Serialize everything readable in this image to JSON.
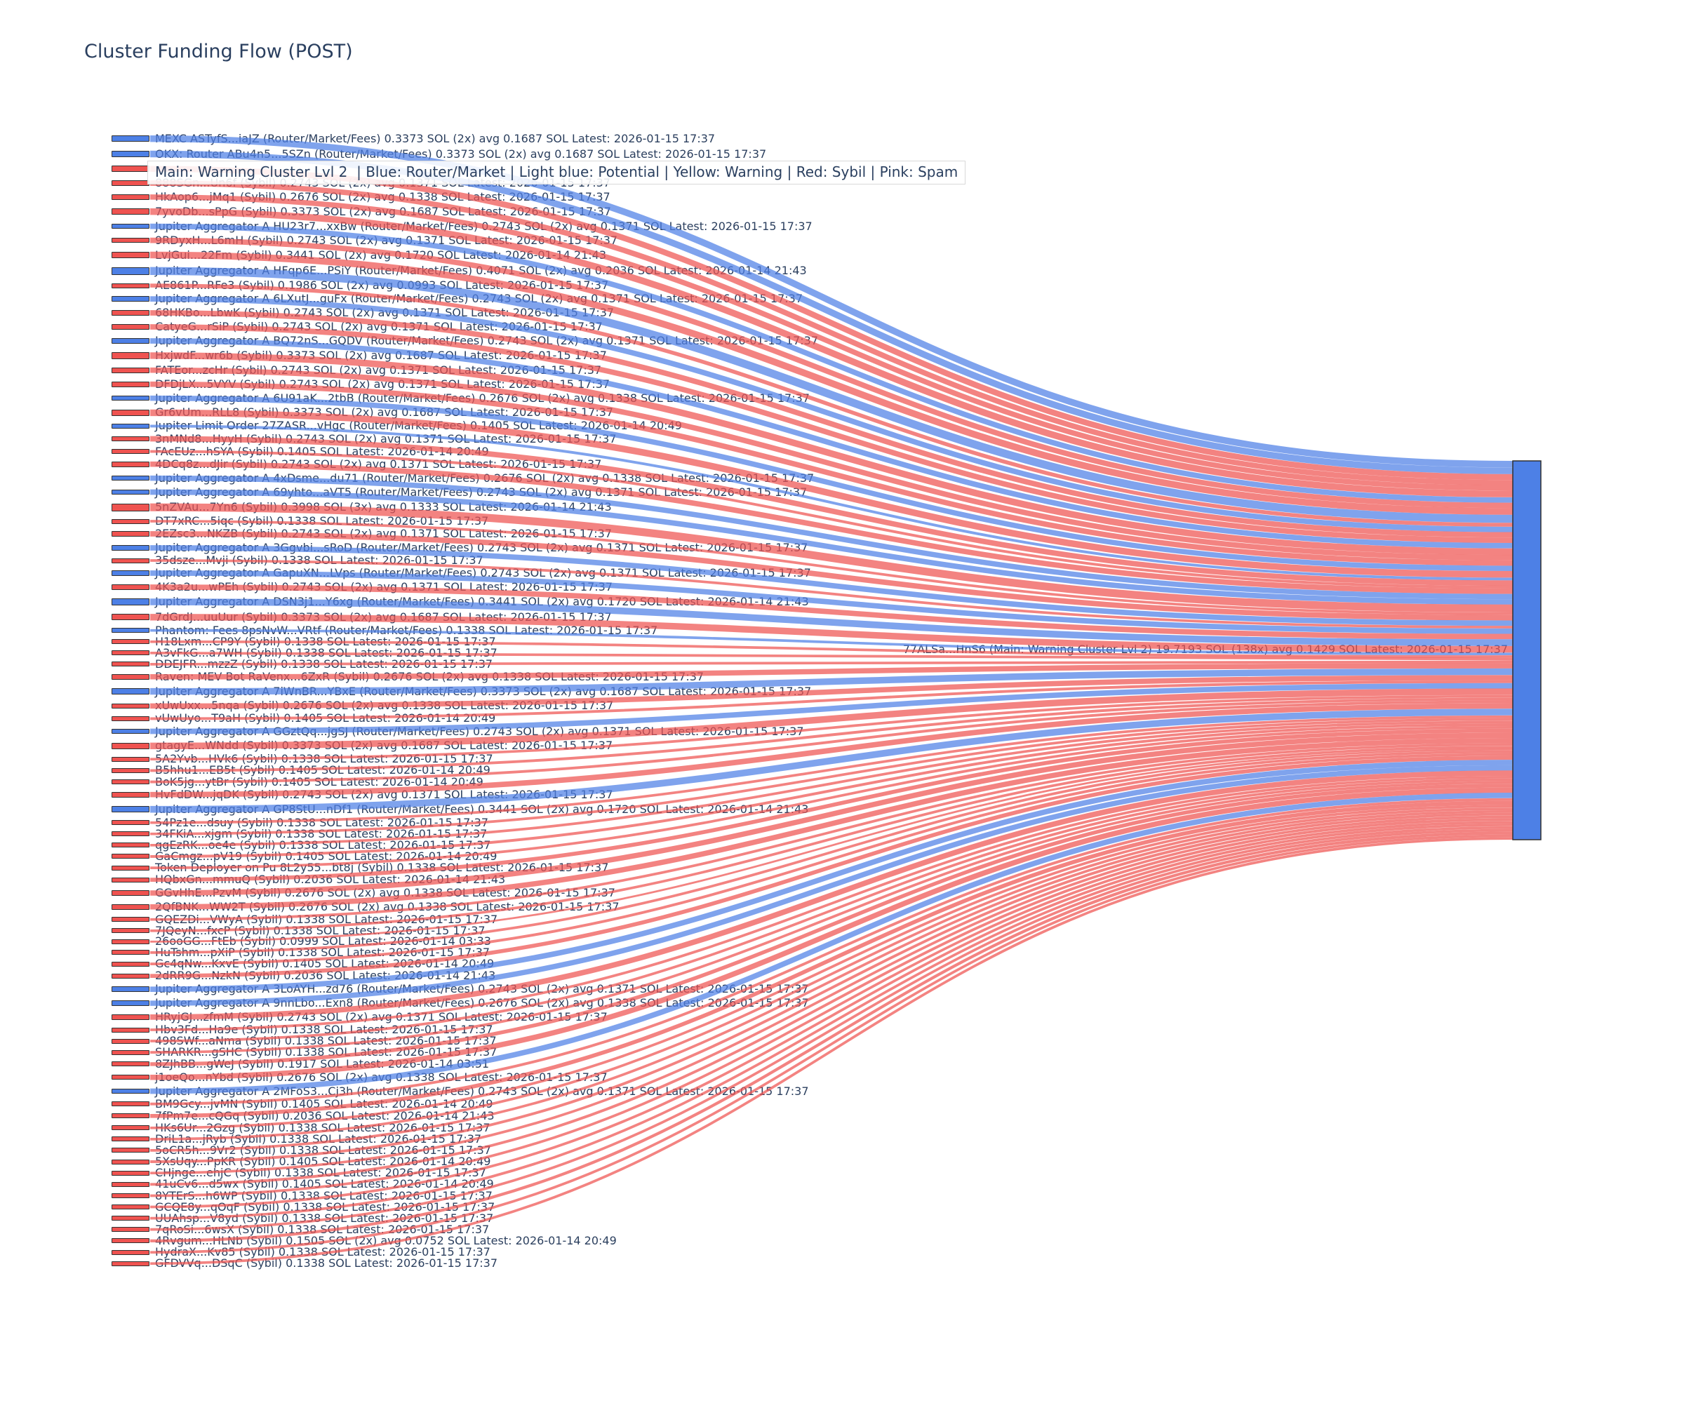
{
  "title": "Cluster Funding Flow (POST)",
  "legend": {
    "text": "Main: Warning Cluster Lvl 2  | Blue: Router/Market | Light blue: Potential | Yellow: Warning | Red: Sybil | Pink: Spam"
  },
  "colors": {
    "router": "#4d80e6",
    "sybil": "#ef5350",
    "target": "#4d80e6",
    "link_router": "rgba(77,128,230,0.72)",
    "link_sybil": "rgba(239,83,80,0.72)",
    "text": "#2b3f5e"
  },
  "chart_data": {
    "type": "sankey",
    "title": "Cluster Funding Flow (POST)",
    "target": {
      "label": "77ALSa...HnS6 (Main: Warning Cluster Lvl 2) 19.7193 SOL (138x) avg 0.1429 SOL Latest: 2026-01-15 17:37",
      "total_sol": 19.7193,
      "tx_count": "138x",
      "avg_sol": 0.1429,
      "latest": "2026-01-15 17:37"
    },
    "sources": [
      {
        "label": "MEXC ASTyfS...iaJZ (Router/Market/Fees) 0.3373 SOL (2x) avg 0.1687 SOL Latest: 2026-01-15 17:37",
        "type": "router",
        "value_sol": 0.3373
      },
      {
        "label": "OKX: Router ABu4n5...5SZn (Router/Market/Fees) 0.3373 SOL (2x) avg 0.1687 SOL Latest: 2026-01-15 17:37",
        "type": "router",
        "value_sol": 0.3373
      },
      {
        "label": "",
        "type": "sybil",
        "value_sol": null,
        "hidden_behind_legend": true
      },
      {
        "label": "888SGn...Un6f (Sybil) 0.2743 SOL (2x) avg 0.1371 SOL Latest: 2026-01-15 17:37",
        "type": "sybil",
        "value_sol": 0.2743
      },
      {
        "label": "HkAop6...jMq1 (Sybil) 0.2676 SOL (2x) avg 0.1338 SOL Latest: 2026-01-15 17:37",
        "type": "sybil",
        "value_sol": 0.2676
      },
      {
        "label": "7yvoDb...sPpG (Sybil) 0.3373 SOL (2x) avg 0.1687 SOL Latest: 2026-01-15 17:37",
        "type": "sybil",
        "value_sol": 0.3373
      },
      {
        "label": "Jupiter Aggregator A HU23r7...xxBw (Router/Market/Fees) 0.2743 SOL (2x) avg 0.1371 SOL Latest: 2026-01-15 17:37",
        "type": "router",
        "value_sol": 0.2743
      },
      {
        "label": "9RDyxH...L6mH (Sybil) 0.2743 SOL (2x) avg 0.1371 SOL Latest: 2026-01-15 17:37",
        "type": "sybil",
        "value_sol": 0.2743
      },
      {
        "label": "LvjGui...22Fm (Sybil) 0.3441 SOL (2x) avg 0.1720 SOL Latest: 2026-01-14 21:43",
        "type": "sybil",
        "value_sol": 0.3441
      },
      {
        "label": "Jupiter Aggregator A HFqp6E...PSiY (Router/Market/Fees) 0.4071 SOL (2x) avg 0.2036 SOL Latest: 2026-01-14 21:43",
        "type": "router",
        "value_sol": 0.4071
      },
      {
        "label": "AE861P...RFe3 (Sybil) 0.1986 SOL (2x) avg 0.0993 SOL Latest: 2026-01-15 17:37",
        "type": "sybil",
        "value_sol": 0.1986
      },
      {
        "label": "Jupiter Aggregator A 6LXutJ...guFx (Router/Market/Fees) 0.2743 SOL (2x) avg 0.1371 SOL Latest: 2026-01-15 17:37",
        "type": "router",
        "value_sol": 0.2743
      },
      {
        "label": "68HKBo...LbwK (Sybil) 0.2743 SOL (2x) avg 0.1371 SOL Latest: 2026-01-15 17:37",
        "type": "sybil",
        "value_sol": 0.2743
      },
      {
        "label": "CatyeG...rSiP (Sybil) 0.2743 SOL (2x) avg 0.1371 SOL Latest: 2026-01-15 17:37",
        "type": "sybil",
        "value_sol": 0.2743
      },
      {
        "label": "Jupiter Aggregator A BQ72nS...GQDV (Router/Market/Fees) 0.2743 SOL (2x) avg 0.1371 SOL Latest: 2026-01-15 17:37",
        "type": "router",
        "value_sol": 0.2743
      },
      {
        "label": "HxjwdF...wr6b (Sybil) 0.3373 SOL (2x) avg 0.1687 SOL Latest: 2026-01-15 17:37",
        "type": "sybil",
        "value_sol": 0.3373
      },
      {
        "label": "FATEor...zcHr (Sybil) 0.2743 SOL (2x) avg 0.1371 SOL Latest: 2026-01-15 17:37",
        "type": "sybil",
        "value_sol": 0.2743
      },
      {
        "label": "DFDjLX...5VYV (Sybil) 0.2743 SOL (2x) avg 0.1371 SOL Latest: 2026-01-15 17:37",
        "type": "sybil",
        "value_sol": 0.2743
      },
      {
        "label": "Jupiter Aggregator A 6U91aK...2tbB (Router/Market/Fees) 0.2676 SOL (2x) avg 0.1338 SOL Latest: 2026-01-15 17:37",
        "type": "router",
        "value_sol": 0.2676
      },
      {
        "label": "Gr6vUm...RLL8 (Sybil) 0.3373 SOL (2x) avg 0.1687 SOL Latest: 2026-01-15 17:37",
        "type": "sybil",
        "value_sol": 0.3373
      },
      {
        "label": "Jupiter Limit Order 27ZASR...vHgc (Router/Market/Fees) 0.1405 SOL Latest: 2026-01-14 20:49",
        "type": "router",
        "value_sol": 0.1405
      },
      {
        "label": "3nMNd8...HyyH (Sybil) 0.2743 SOL (2x) avg 0.1371 SOL Latest: 2026-01-15 17:37",
        "type": "sybil",
        "value_sol": 0.2743
      },
      {
        "label": "FAcEUz...hSYA (Sybil) 0.1405 SOL Latest: 2026-01-14 20:49",
        "type": "sybil",
        "value_sol": 0.1405
      },
      {
        "label": "4DCq8z...dJir (Sybil) 0.2743 SOL (2x) avg 0.1371 SOL Latest: 2026-01-15 17:37",
        "type": "sybil",
        "value_sol": 0.2743
      },
      {
        "label": "Jupiter Aggregator A 4xDsme...du71 (Router/Market/Fees) 0.2676 SOL (2x) avg 0.1338 SOL Latest: 2026-01-15 17:37",
        "type": "router",
        "value_sol": 0.2676
      },
      {
        "label": "Jupiter Aggregator A 69yhto...aVT5 (Router/Market/Fees) 0.2743 SOL (2x) avg 0.1371 SOL Latest: 2026-01-15 17:37",
        "type": "router",
        "value_sol": 0.2743
      },
      {
        "label": "5nZVAu...7Yn6 (Sybil) 0.3998 SOL (3x) avg 0.1333 SOL Latest: 2026-01-14 21:43",
        "type": "sybil",
        "value_sol": 0.3998
      },
      {
        "label": "DT7xRC...5iqc (Sybil) 0.1338 SOL Latest: 2026-01-15 17:37",
        "type": "sybil",
        "value_sol": 0.1338
      },
      {
        "label": "2EZsc3...NKZB (Sybil) 0.2743 SOL (2x) avg 0.1371 SOL Latest: 2026-01-15 17:37",
        "type": "sybil",
        "value_sol": 0.2743
      },
      {
        "label": "Jupiter Aggregator A 3Ggvbi...sRoD (Router/Market/Fees) 0.2743 SOL (2x) avg 0.1371 SOL Latest: 2026-01-15 17:37",
        "type": "router",
        "value_sol": 0.2743
      },
      {
        "label": "35dsze...Mvji (Sybil) 0.1338 SOL Latest: 2026-01-15 17:37",
        "type": "sybil",
        "value_sol": 0.1338
      },
      {
        "label": "Jupiter Aggregator A GapuXN...LVps (Router/Market/Fees) 0.2743 SOL (2x) avg 0.1371 SOL Latest: 2026-01-15 17:37",
        "type": "router",
        "value_sol": 0.2743
      },
      {
        "label": "4K3a2u...wPEh (Sybil) 0.2743 SOL (2x) avg 0.1371 SOL Latest: 2026-01-15 17:37",
        "type": "sybil",
        "value_sol": 0.2743
      },
      {
        "label": "Jupiter Aggregator A DSN3j1...Y6xg (Router/Market/Fees) 0.3441 SOL (2x) avg 0.1720 SOL Latest: 2026-01-14 21:43",
        "type": "router",
        "value_sol": 0.3441
      },
      {
        "label": "7dGrdJ...uuUur (Sybil) 0.3373 SOL (2x) avg 0.1687 SOL Latest: 2026-01-15 17:37",
        "type": "sybil",
        "value_sol": 0.3373
      },
      {
        "label": "Phantom: Fees 8psNvW...VRtf (Router/Market/Fees) 0.1338 SOL Latest: 2026-01-15 17:37",
        "type": "router",
        "value_sol": 0.1338
      },
      {
        "label": "H18Lxm...CP9Y (Sybil) 0.1338 SOL Latest: 2026-01-15 17:37",
        "type": "sybil",
        "value_sol": 0.1338
      },
      {
        "label": "A3vFkG...a7WH (Sybil) 0.1338 SOL Latest: 2026-01-15 17:37",
        "type": "sybil",
        "value_sol": 0.1338
      },
      {
        "label": "DDEJFR...mzzZ (Sybil) 0.1338 SOL Latest: 2026-01-15 17:37",
        "type": "sybil",
        "value_sol": 0.1338
      },
      {
        "label": "Raven: MEV Bot RaVenx...6ZxR (Sybil) 0.2676 SOL (2x) avg 0.1338 SOL Latest: 2026-01-15 17:37",
        "type": "sybil",
        "value_sol": 0.2676
      },
      {
        "label": "Jupiter Aggregator A 7iWnBR...YBxE (Router/Market/Fees) 0.3373 SOL (2x) avg 0.1687 SOL Latest: 2026-01-15 17:37",
        "type": "router",
        "value_sol": 0.3373
      },
      {
        "label": "xUwUxx...5nqa (Sybil) 0.2676 SOL (2x) avg 0.1338 SOL Latest: 2026-01-15 17:37",
        "type": "sybil",
        "value_sol": 0.2676
      },
      {
        "label": "vUwUyo...T9aH (Sybil) 0.1405 SOL Latest: 2026-01-14 20:49",
        "type": "sybil",
        "value_sol": 0.1405
      },
      {
        "label": "Jupiter Aggregator A GGztQq...jgSJ (Router/Market/Fees) 0.2743 SOL (2x) avg 0.1371 SOL Latest: 2026-01-15 17:37",
        "type": "router",
        "value_sol": 0.2743
      },
      {
        "label": "gtagyE...WNdd (Sybil) 0.3373 SOL (2x) avg 0.1687 SOL Latest: 2026-01-15 17:37",
        "type": "sybil",
        "value_sol": 0.3373
      },
      {
        "label": "5A2Yvb...HVk6 (Sybil) 0.1338 SOL Latest: 2026-01-15 17:37",
        "type": "sybil",
        "value_sol": 0.1338
      },
      {
        "label": "B5hhu1...EB5t (Sybil) 0.1405 SOL Latest: 2026-01-14 20:49",
        "type": "sybil",
        "value_sol": 0.1405
      },
      {
        "label": "BoK5jg...ytBr (Sybil) 0.1405 SOL Latest: 2026-01-14 20:49",
        "type": "sybil",
        "value_sol": 0.1405
      },
      {
        "label": "HvFdDW...jqDK (Sybil) 0.2743 SOL (2x) avg 0.1371 SOL Latest: 2026-01-15 17:37",
        "type": "sybil",
        "value_sol": 0.2743
      },
      {
        "label": "Jupiter Aggregator A GP8StU...nDf1 (Router/Market/Fees) 0.3441 SOL (2x) avg 0.1720 SOL Latest: 2026-01-14 21:43",
        "type": "router",
        "value_sol": 0.3441
      },
      {
        "label": "54Pz1e...dsuy (Sybil) 0.1338 SOL Latest: 2026-01-15 17:37",
        "type": "sybil",
        "value_sol": 0.1338
      },
      {
        "label": "34FKiA...xjgm (Sybil) 0.1338 SOL Latest: 2026-01-15 17:37",
        "type": "sybil",
        "value_sol": 0.1338
      },
      {
        "label": "qgEzRK...oe4e (Sybil) 0.1338 SOL Latest: 2026-01-15 17:37",
        "type": "sybil",
        "value_sol": 0.1338
      },
      {
        "label": "GaCmgz...pV19 (Sybil) 0.1405 SOL Latest: 2026-01-14 20:49",
        "type": "sybil",
        "value_sol": 0.1405
      },
      {
        "label": "Token Deployer on Pu 8L2y55...bt8j (Sybil) 0.1338 SOL Latest: 2026-01-15 17:37",
        "type": "sybil",
        "value_sol": 0.1338
      },
      {
        "label": "HQbxGn...mmuQ (Sybil) 0.2036 SOL Latest: 2026-01-14 21:43",
        "type": "sybil",
        "value_sol": 0.2036
      },
      {
        "label": "GGvHhE...PzvM (Sybil) 0.2676 SOL (2x) avg 0.1338 SOL Latest: 2026-01-15 17:37",
        "type": "sybil",
        "value_sol": 0.2676
      },
      {
        "label": "2QfBNK...WW2T (Sybil) 0.2676 SOL (2x) avg 0.1338 SOL Latest: 2026-01-15 17:37",
        "type": "sybil",
        "value_sol": 0.2676
      },
      {
        "label": "GQEZDi...VWyA (Sybil) 0.1338 SOL Latest: 2026-01-15 17:37",
        "type": "sybil",
        "value_sol": 0.1338
      },
      {
        "label": "7JQeyN...fxcP (Sybil) 0.1338 SOL Latest: 2026-01-15 17:37",
        "type": "sybil",
        "value_sol": 0.1338
      },
      {
        "label": "26ooGG...FtEb (Sybil) 0.0999 SOL Latest: 2026-01-14 03:33",
        "type": "sybil",
        "value_sol": 0.0999
      },
      {
        "label": "HuTshm...pXiP (Sybil) 0.1338 SOL Latest: 2026-01-15 17:37",
        "type": "sybil",
        "value_sol": 0.1338
      },
      {
        "label": "Gc4qNw...KxvE (Sybil) 0.1405 SOL Latest: 2026-01-14 20:49",
        "type": "sybil",
        "value_sol": 0.1405
      },
      {
        "label": "2dRR9G...NzkN (Sybil) 0.2036 SOL Latest: 2026-01-14 21:43",
        "type": "sybil",
        "value_sol": 0.2036
      },
      {
        "label": "Jupiter Aggregator A 3LoAYH...zd76 (Router/Market/Fees) 0.2743 SOL (2x) avg 0.1371 SOL Latest: 2026-01-15 17:37",
        "type": "router",
        "value_sol": 0.2743
      },
      {
        "label": "Jupiter Aggregator A 9nnLbo...Exn8 (Router/Market/Fees) 0.2676 SOL (2x) avg 0.1338 SOL Latest: 2026-01-15 17:37",
        "type": "router",
        "value_sol": 0.2676
      },
      {
        "label": "HRyjGJ...zfmM (Sybil) 0.2743 SOL (2x) avg 0.1371 SOL Latest: 2026-01-15 17:37",
        "type": "sybil",
        "value_sol": 0.2743
      },
      {
        "label": "Hbv3Fd...Ha9e (Sybil) 0.1338 SOL Latest: 2026-01-15 17:37",
        "type": "sybil",
        "value_sol": 0.1338
      },
      {
        "label": "498SWf...aNma (Sybil) 0.1338 SOL Latest: 2026-01-15 17:37",
        "type": "sybil",
        "value_sol": 0.1338
      },
      {
        "label": "SHARKR...gSHC (Sybil) 0.1338 SOL Latest: 2026-01-15 17:37",
        "type": "sybil",
        "value_sol": 0.1338
      },
      {
        "label": "8ZJhBB...gWeJ (Sybil) 0.1917 SOL Latest: 2026-01-14 03:51",
        "type": "sybil",
        "value_sol": 0.1917
      },
      {
        "label": "j1oeQo...nYbd (Sybil) 0.2676 SOL (2x) avg 0.1338 SOL Latest: 2026-01-15 17:37",
        "type": "sybil",
        "value_sol": 0.2676
      },
      {
        "label": "Jupiter Aggregator A 2MFoS3...Cj3h (Router/Market/Fees) 0.2743 SOL (2x) avg 0.1371 SOL Latest: 2026-01-15 17:37",
        "type": "router",
        "value_sol": 0.2743
      },
      {
        "label": "BM9Gcy...jvMN (Sybil) 0.1405 SOL Latest: 2026-01-14 20:49",
        "type": "sybil",
        "value_sol": 0.1405
      },
      {
        "label": "7fPm7e...cQGq (Sybil) 0.2036 SOL Latest: 2026-01-14 21:43",
        "type": "sybil",
        "value_sol": 0.2036
      },
      {
        "label": "HKs6Ur...2Gzg (Sybil) 0.1338 SOL Latest: 2026-01-15 17:37",
        "type": "sybil",
        "value_sol": 0.1338
      },
      {
        "label": "DriL1a...jRyb (Sybil) 0.1338 SOL Latest: 2026-01-15 17:37",
        "type": "sybil",
        "value_sol": 0.1338
      },
      {
        "label": "5oCR5h...9Vr2 (Sybil) 0.1338 SOL Latest: 2026-01-15 17:37",
        "type": "sybil",
        "value_sol": 0.1338
      },
      {
        "label": "5XsUqy...PpKR (Sybil) 0.1405 SOL Latest: 2026-01-14 20:49",
        "type": "sybil",
        "value_sol": 0.1405
      },
      {
        "label": "CHjnge...ehjC (Sybil) 0.1338 SOL Latest: 2026-01-15 17:37",
        "type": "sybil",
        "value_sol": 0.1338
      },
      {
        "label": "41uCv6...d5wx (Sybil) 0.1405 SOL Latest: 2026-01-14 20:49",
        "type": "sybil",
        "value_sol": 0.1405
      },
      {
        "label": "8YTErS...h6WP (Sybil) 0.1338 SOL Latest: 2026-01-15 17:37",
        "type": "sybil",
        "value_sol": 0.1338
      },
      {
        "label": "GCQE8y...qOqF (Sybil) 0.1338 SOL Latest: 2026-01-15 17:37",
        "type": "sybil",
        "value_sol": 0.1338
      },
      {
        "label": "UUAhsp...V8yd (Sybil) 0.1338 SOL Latest: 2026-01-15 17:37",
        "type": "sybil",
        "value_sol": 0.1338
      },
      {
        "label": "7qRoSi...6wsX (Sybil) 0.1338 SOL Latest: 2026-01-15 17:37",
        "type": "sybil",
        "value_sol": 0.1338
      },
      {
        "label": "4Rvgum...HLNb (Sybil) 0.1505 SOL (2x) avg 0.0752 SOL Latest: 2026-01-14 20:49",
        "type": "sybil",
        "value_sol": 0.1505
      },
      {
        "label": "HydraX...Kv85 (Sybil) 0.1338 SOL Latest: 2026-01-15 17:37",
        "type": "sybil",
        "value_sol": 0.1338
      },
      {
        "label": "GFDVVq...DSqC (Sybil) 0.1338 SOL Latest: 2026-01-15 17:37",
        "type": "sybil",
        "value_sol": 0.1338
      }
    ]
  }
}
